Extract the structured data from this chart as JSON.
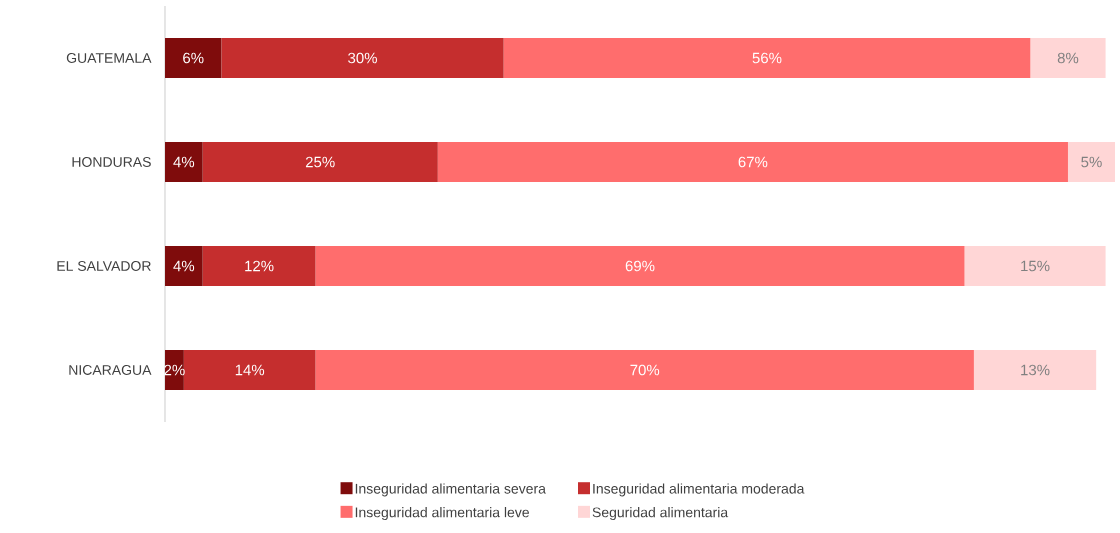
{
  "chart_data": {
    "type": "bar",
    "orientation": "horizontal",
    "stacked": true,
    "categories": [
      "GUATEMALA",
      "HONDURAS",
      "EL SALVADOR",
      "NICARAGUA"
    ],
    "series": [
      {
        "name": "Inseguridad alimentaria severa",
        "color": "#7f0c0c",
        "values": [
          6,
          4,
          4,
          2
        ],
        "value_labels": [
          "6%",
          "4%",
          "4%",
          "2%"
        ]
      },
      {
        "name": "Inseguridad alimentaria moderada",
        "color": "#c52e2e",
        "values": [
          30,
          25,
          12,
          14
        ],
        "value_labels": [
          "30%",
          "25%",
          "12%",
          "14%"
        ]
      },
      {
        "name": "Inseguridad alimentaria leve",
        "color": "#ff6d6d",
        "values": [
          56,
          67,
          69,
          70
        ],
        "value_labels": [
          "56%",
          "67%",
          "69%",
          "70%"
        ]
      },
      {
        "name": "Seguridad alimentaria",
        "color": "#ffd6d6",
        "values": [
          8,
          5,
          15,
          13
        ],
        "value_labels": [
          "8%",
          "5%",
          "15%",
          "13%"
        ]
      }
    ],
    "xlim": [
      0,
      101
    ],
    "legend": "bottom",
    "tick_labels": "y"
  }
}
